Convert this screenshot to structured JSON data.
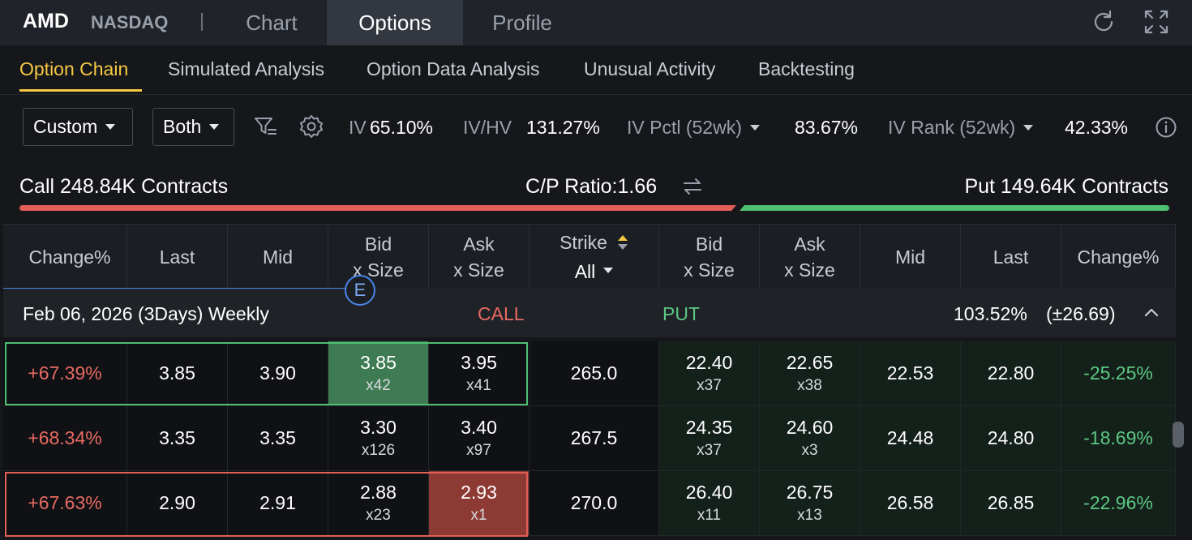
{
  "header": {
    "ticker": "AMD",
    "exchange": "NASDAQ",
    "tabs": [
      {
        "label": "Chart",
        "active": false
      },
      {
        "label": "Options",
        "active": true
      },
      {
        "label": "Profile",
        "active": false
      }
    ],
    "icons": [
      "refresh-icon",
      "fullscreen-icon"
    ]
  },
  "subtabs": [
    {
      "label": "Option Chain",
      "active": true
    },
    {
      "label": "Simulated Analysis",
      "active": false
    },
    {
      "label": "Option Data Analysis",
      "active": false
    },
    {
      "label": "Unusual Activity",
      "active": false
    },
    {
      "label": "Backtesting",
      "active": false
    }
  ],
  "toolbar": {
    "expiry_mode": "Custom",
    "side_mode": "Both",
    "iv_label": "IV",
    "iv_value": "65.10%",
    "ivhv_label": "IV/HV",
    "ivhv_value": "131.27%",
    "ivpctl_label": "IV Pctl (52wk)",
    "ivpctl_value": "83.67%",
    "ivrank_label": "IV Rank (52wk)",
    "ivrank_value": "42.33%"
  },
  "ratio": {
    "call_text": "Call 248.84K Contracts",
    "cp_text": "C/P Ratio:1.66",
    "put_text": "Put 149.64K Contracts",
    "call_fraction": 0.624,
    "colors": {
      "call": "#e25e56",
      "put": "#4fbf72"
    }
  },
  "table": {
    "headers": {
      "call_change": "Change%",
      "call_last": "Last",
      "call_mid": "Mid",
      "call_bid": [
        "Bid",
        "x Size"
      ],
      "call_ask": [
        "Ask",
        "x Size"
      ],
      "strike": "Strike",
      "strike_filter": "All",
      "put_bid": [
        "Bid",
        "x Size"
      ],
      "put_ask": [
        "Ask",
        "x Size"
      ],
      "put_mid": "Mid",
      "put_last": "Last",
      "put_change": "Change%"
    },
    "expiry_badge": "E",
    "group": {
      "label": "Feb 06, 2026 (3Days) Weekly",
      "call_label": "CALL",
      "put_label": "PUT",
      "iv": "103.52%",
      "move": "(±26.69)"
    },
    "rows": [
      {
        "call_change": "+67.39%",
        "call_last": "3.85",
        "call_mid": "3.90",
        "call_bid": "3.85",
        "call_bid_size": "x42",
        "call_ask": "3.95",
        "call_ask_size": "x41",
        "strike": "265.0",
        "put_bid": "22.40",
        "put_bid_size": "x37",
        "put_ask": "22.65",
        "put_ask_size": "x38",
        "put_mid": "22.53",
        "put_last": "22.80",
        "put_change": "-25.25%"
      },
      {
        "call_change": "+68.34%",
        "call_last": "3.35",
        "call_mid": "3.35",
        "call_bid": "3.30",
        "call_bid_size": "x126",
        "call_ask": "3.40",
        "call_ask_size": "x97",
        "strike": "267.5",
        "put_bid": "24.35",
        "put_bid_size": "x37",
        "put_ask": "24.60",
        "put_ask_size": "x3",
        "put_mid": "24.48",
        "put_last": "24.80",
        "put_change": "-18.69%"
      },
      {
        "call_change": "+67.63%",
        "call_last": "2.90",
        "call_mid": "2.91",
        "call_bid": "2.88",
        "call_bid_size": "x23",
        "call_ask": "2.93",
        "call_ask_size": "x1",
        "strike": "270.0",
        "put_bid": "26.40",
        "put_bid_size": "x11",
        "put_ask": "26.75",
        "put_ask_size": "x13",
        "put_mid": "26.58",
        "put_last": "26.85",
        "put_change": "-22.96%"
      }
    ]
  }
}
